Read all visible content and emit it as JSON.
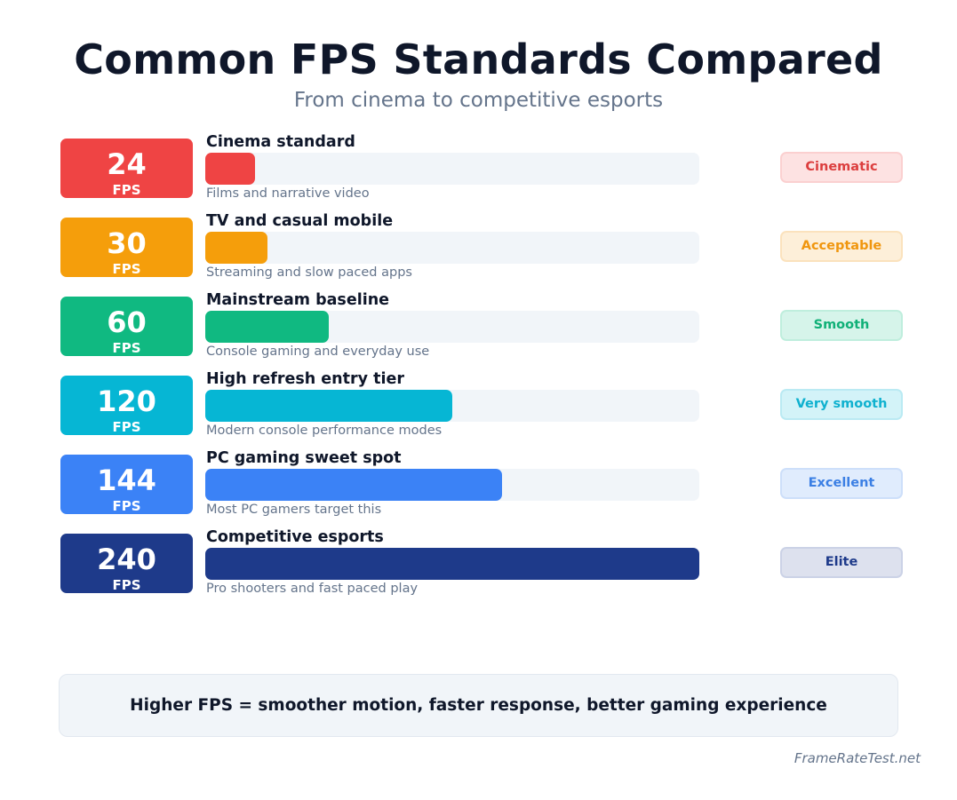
{
  "header": {
    "title": "Common FPS Standards Compared",
    "subtitle": "From cinema to competitive esports"
  },
  "chart_data": {
    "type": "bar",
    "orientation": "horizontal",
    "xlim": [
      0,
      240
    ],
    "unit": "FPS",
    "categories": [
      "Cinema standard",
      "TV and casual mobile",
      "Mainstream baseline",
      "High refresh entry tier",
      "PC gaming sweet spot",
      "Competitive esports"
    ],
    "values": [
      24,
      30,
      60,
      120,
      144,
      240
    ],
    "rows": [
      {
        "fps": "24",
        "unit": "FPS",
        "label": "Cinema standard",
        "desc": "Films and narrative video",
        "tag": "Cinematic",
        "value": 24,
        "color": "#ef4444",
        "tag_bg": "#fde2e2",
        "tag_border": "#fbd0d0",
        "tag_color": "#dc3e3e"
      },
      {
        "fps": "30",
        "unit": "FPS",
        "label": "TV and casual mobile",
        "desc": "Streaming and slow paced apps",
        "tag": "Acceptable",
        "value": 30,
        "color": "#f59e0b",
        "tag_bg": "#fdefd9",
        "tag_border": "#fbe2bd",
        "tag_color": "#f0960e"
      },
      {
        "fps": "60",
        "unit": "FPS",
        "label": "Mainstream baseline",
        "desc": "Console gaming and everyday use",
        "tag": "Smooth",
        "value": 60,
        "color": "#10b981",
        "tag_bg": "#d6f4ea",
        "tag_border": "#bfeedd",
        "tag_color": "#10b077"
      },
      {
        "fps": "120",
        "unit": "FPS",
        "label": "High refresh entry tier",
        "desc": "Modern console performance modes",
        "tag": "Very smooth",
        "value": 120,
        "color": "#06b6d4",
        "tag_bg": "#d3f3f8",
        "tag_border": "#baeaf3",
        "tag_color": "#0fb1cf"
      },
      {
        "fps": "144",
        "unit": "FPS",
        "label": "PC gaming sweet spot",
        "desc": "Most PC gamers target this",
        "tag": "Excellent",
        "value": 144,
        "color": "#3b82f6",
        "tag_bg": "#e0ecfd",
        "tag_border": "#cddffa",
        "tag_color": "#3b7fe4"
      },
      {
        "fps": "240",
        "unit": "FPS",
        "label": "Competitive esports",
        "desc": "Pro shooters and fast paced play",
        "tag": "Elite",
        "value": 240,
        "color": "#1e3a8a",
        "tag_bg": "#dde1ee",
        "tag_border": "#cbd2e6",
        "tag_color": "#1e3a8a"
      }
    ]
  },
  "footer": {
    "summary": "Higher FPS = smoother motion, faster response, better gaming experience",
    "credit": "FrameRateTest.net"
  }
}
